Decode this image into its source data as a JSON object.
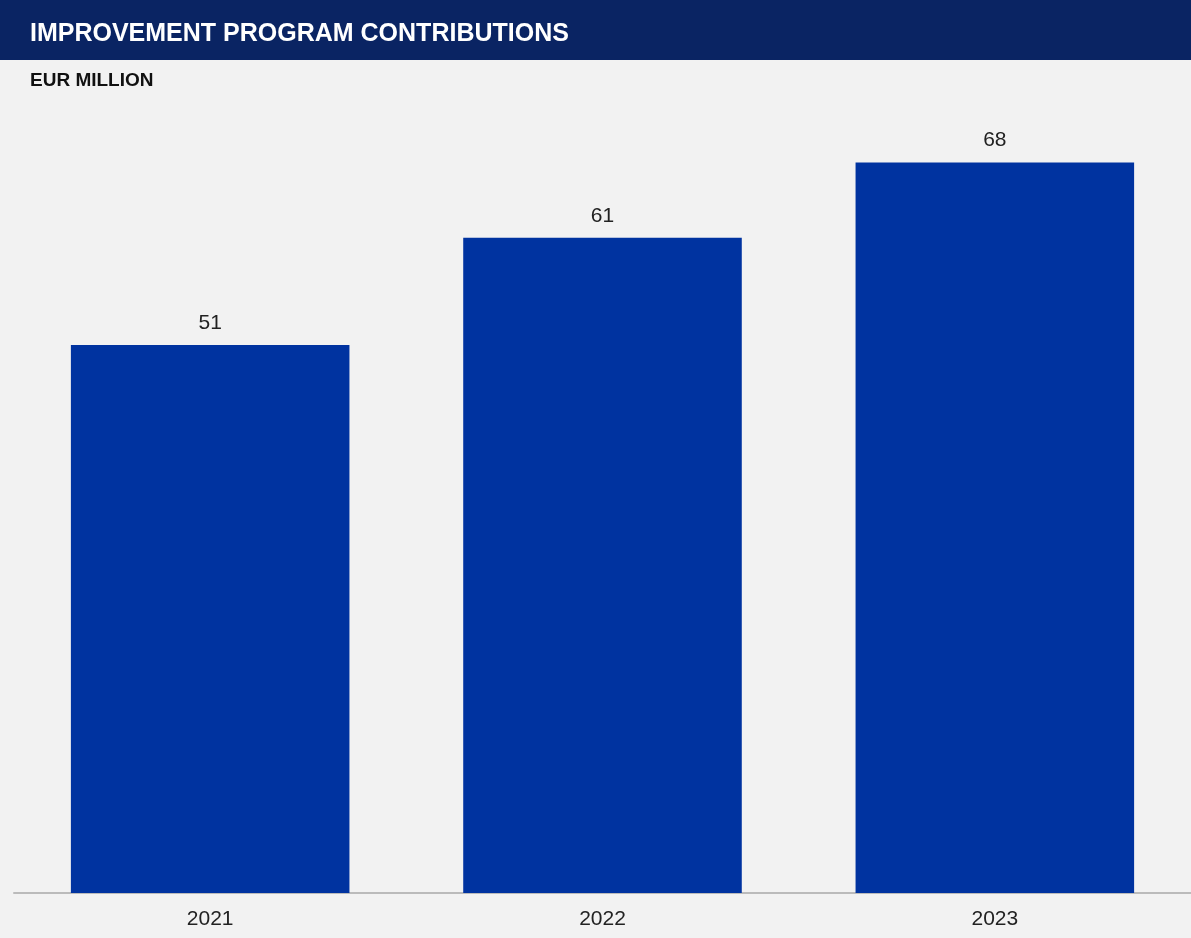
{
  "chart_data": {
    "type": "bar",
    "title": "IMPROVEMENT PROGRAM CONTRIBUTIONS",
    "subtitle": "EUR MILLION",
    "categories": [
      "2021",
      "2022",
      "2023"
    ],
    "values": [
      51,
      61,
      68
    ],
    "color": "#0033a0",
    "data_labels": true
  }
}
